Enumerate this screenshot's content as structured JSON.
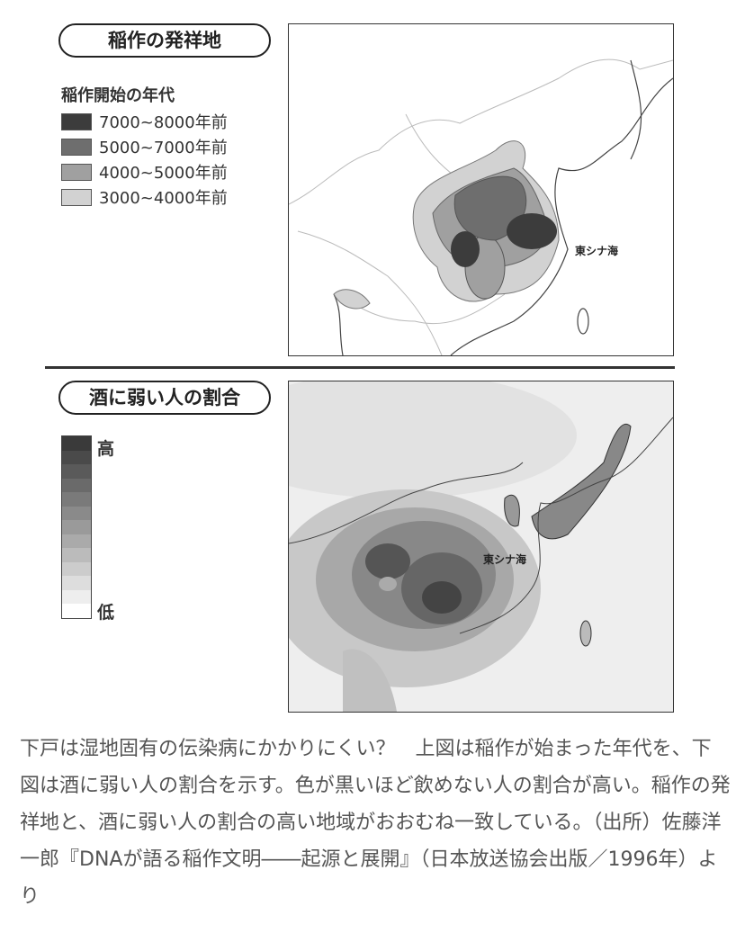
{
  "top_panel": {
    "title": "稲作の発祥地",
    "legend_title": "稲作開始の年代",
    "legend": [
      {
        "label": "7000~8000年前",
        "color": "#3c3c3c"
      },
      {
        "label": "5000~7000年前",
        "color": "#6e6e6e"
      },
      {
        "label": "4000~5000年前",
        "color": "#a0a0a0"
      },
      {
        "label": "3000~4000年前",
        "color": "#d2d2d2"
      }
    ],
    "sea_label": "東シナ海"
  },
  "bottom_panel": {
    "title": "酒に弱い人の割合",
    "legend_high": "高",
    "legend_low": "低",
    "sea_label": "東シナ海"
  },
  "caption": "下戸は湿地固有の伝染病にかかりにくい？　上図は稲作が始まった年代を、下図は酒に弱い人の割合を示す。色が黒いほど飲めない人の割合が高い。稲作の発祥地と、酒に弱い人の割合の高い地域がおおむね一致している。（出所）佐藤洋一郎『DNAが語る稲作文明――起源と展開』（日本放送協会出版／1996年）より"
}
